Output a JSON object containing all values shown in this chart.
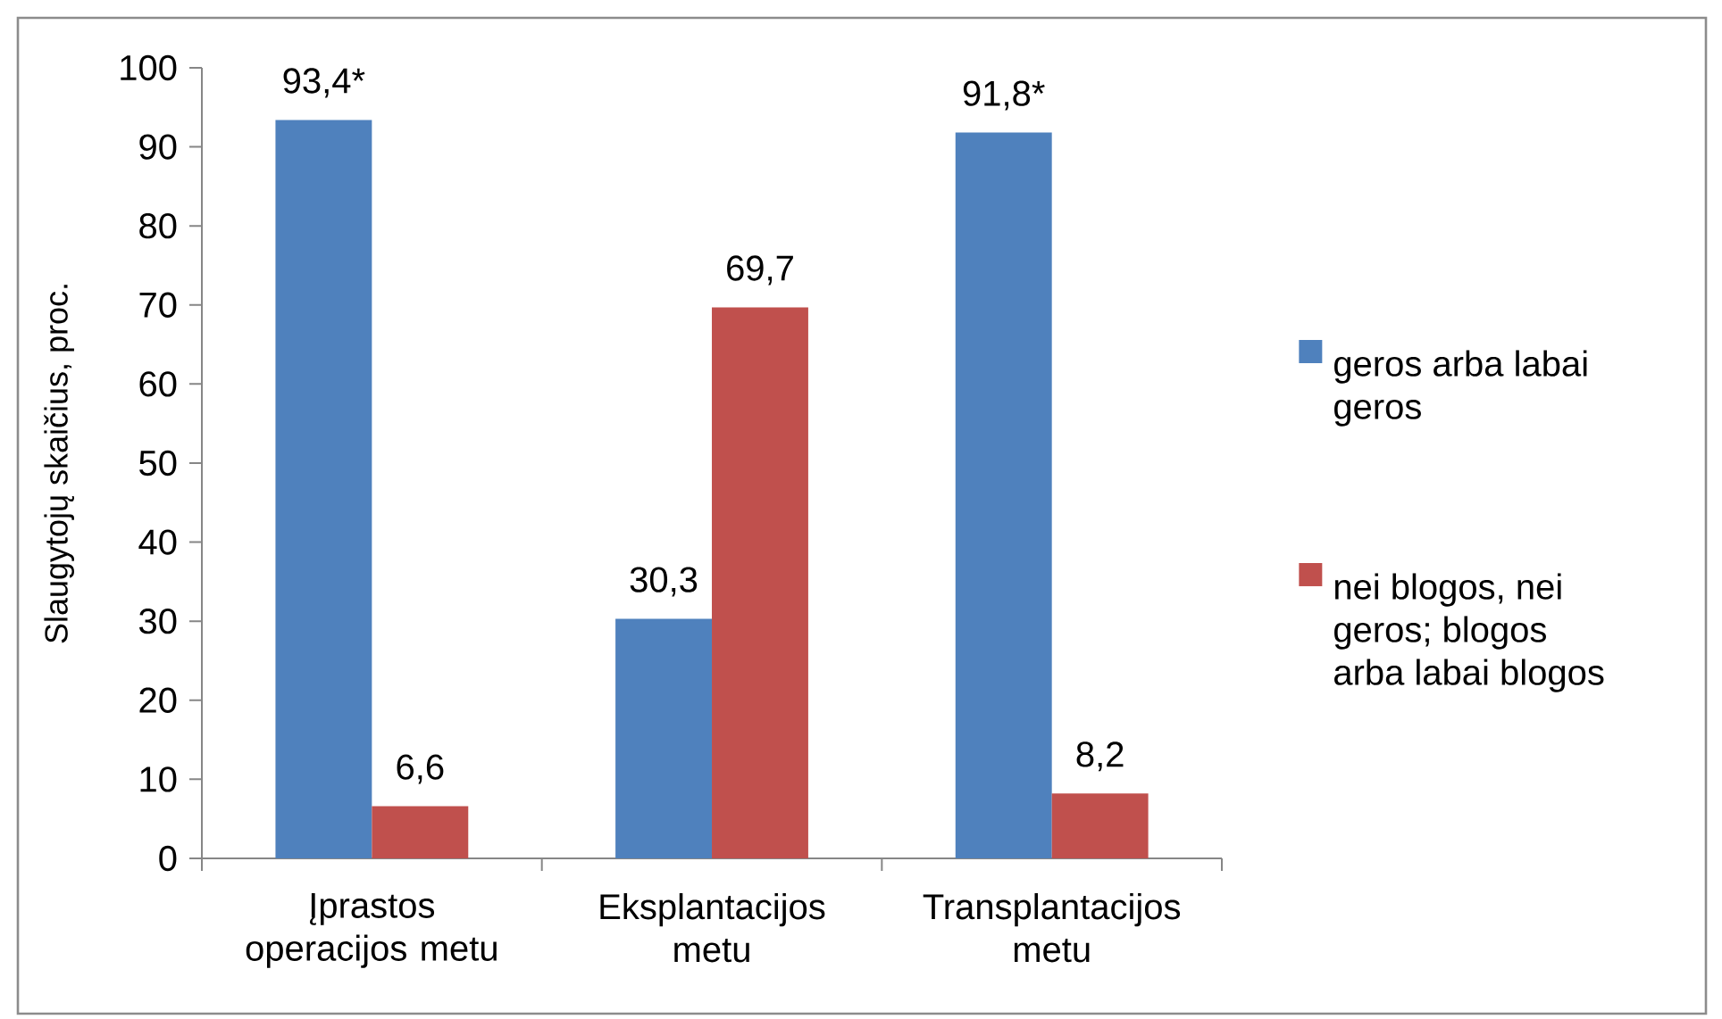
{
  "chart_data": {
    "type": "bar",
    "ylabel": "Slaugytojų skaičius, proc.",
    "categories": [
      "Įprastos operacijos metu",
      "Eksplantacijos metu",
      "Transplantacijos metu"
    ],
    "series": [
      {
        "name": "geros arba labai geros",
        "color": "#4f81bd",
        "values": [
          93.4,
          30.3,
          91.8
        ],
        "value_labels": [
          "93,4*",
          "30,3",
          "91,8*"
        ]
      },
      {
        "name": "nei blogos, nei geros; blogos arba labai blogos",
        "color": "#c0504d",
        "values": [
          6.6,
          69.7,
          8.2
        ],
        "value_labels": [
          "6,6",
          "69,7",
          "8,2"
        ]
      }
    ],
    "ylim": [
      0,
      100
    ],
    "yticks": [
      0,
      10,
      20,
      30,
      40,
      50,
      60,
      70,
      80,
      90,
      100
    ],
    "grid": false,
    "legend": "right"
  }
}
